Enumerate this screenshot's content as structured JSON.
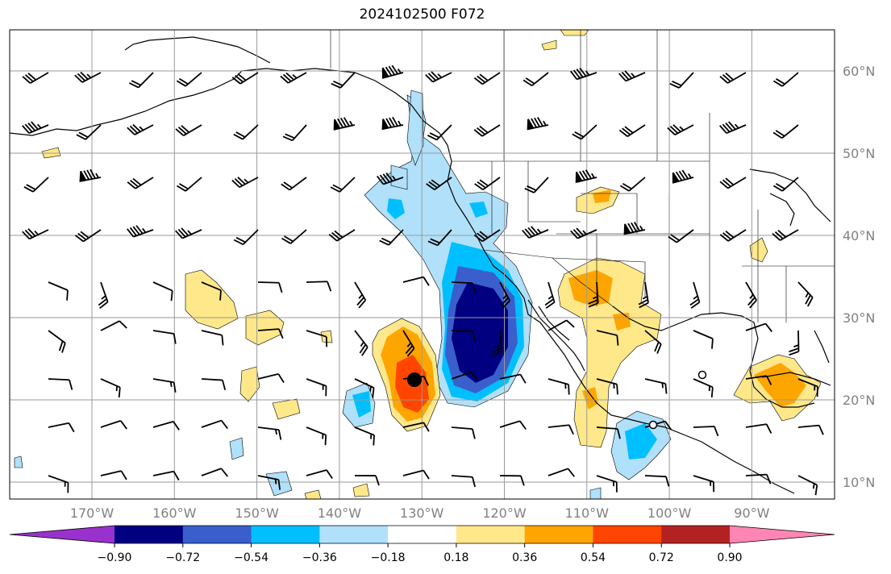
{
  "title": "2024102500 F072",
  "lat_labels": [
    {
      "text": "60°N",
      "lat": 60
    },
    {
      "text": "50°N",
      "lat": 50
    },
    {
      "text": "40°N",
      "lat": 40
    },
    {
      "text": "30°N",
      "lat": 30
    },
    {
      "text": "20°N",
      "lat": 20
    },
    {
      "text": "10°N",
      "lat": 10
    }
  ],
  "lon_labels": [
    {
      "text": "170°W",
      "lon": -170
    },
    {
      "text": "160°W",
      "lon": -160
    },
    {
      "text": "150°W",
      "lon": -150
    },
    {
      "text": "140°W",
      "lon": -140
    },
    {
      "text": "130°W",
      "lon": -130
    },
    {
      "text": "120°W",
      "lon": -120
    },
    {
      "text": "110°W",
      "lon": -110
    },
    {
      "text": "100°W",
      "lon": -100
    },
    {
      "text": "90°W",
      "lon": -90
    }
  ],
  "colorbar": {
    "extend": "both",
    "bins": [
      {
        "color": "#9932cc"
      },
      {
        "color": "#000080"
      },
      {
        "color": "#3a5fcd"
      },
      {
        "color": "#00bfff"
      },
      {
        "color": "#b0e0fa"
      },
      {
        "color": "#ffffff"
      },
      {
        "color": "#ffe88a"
      },
      {
        "color": "#ffa500"
      },
      {
        "color": "#ff4500"
      },
      {
        "color": "#b22222"
      },
      {
        "color": "#ff85b4"
      }
    ],
    "ticks": [
      "−0.90",
      "−0.72",
      "−0.54",
      "−0.36",
      "−0.18",
      "0.18",
      "0.36",
      "0.54",
      "0.72",
      "0.90"
    ]
  },
  "map_extent": {
    "lon_min": -180,
    "lon_max": -80,
    "lat_min": 8,
    "lat_max": 65
  }
}
